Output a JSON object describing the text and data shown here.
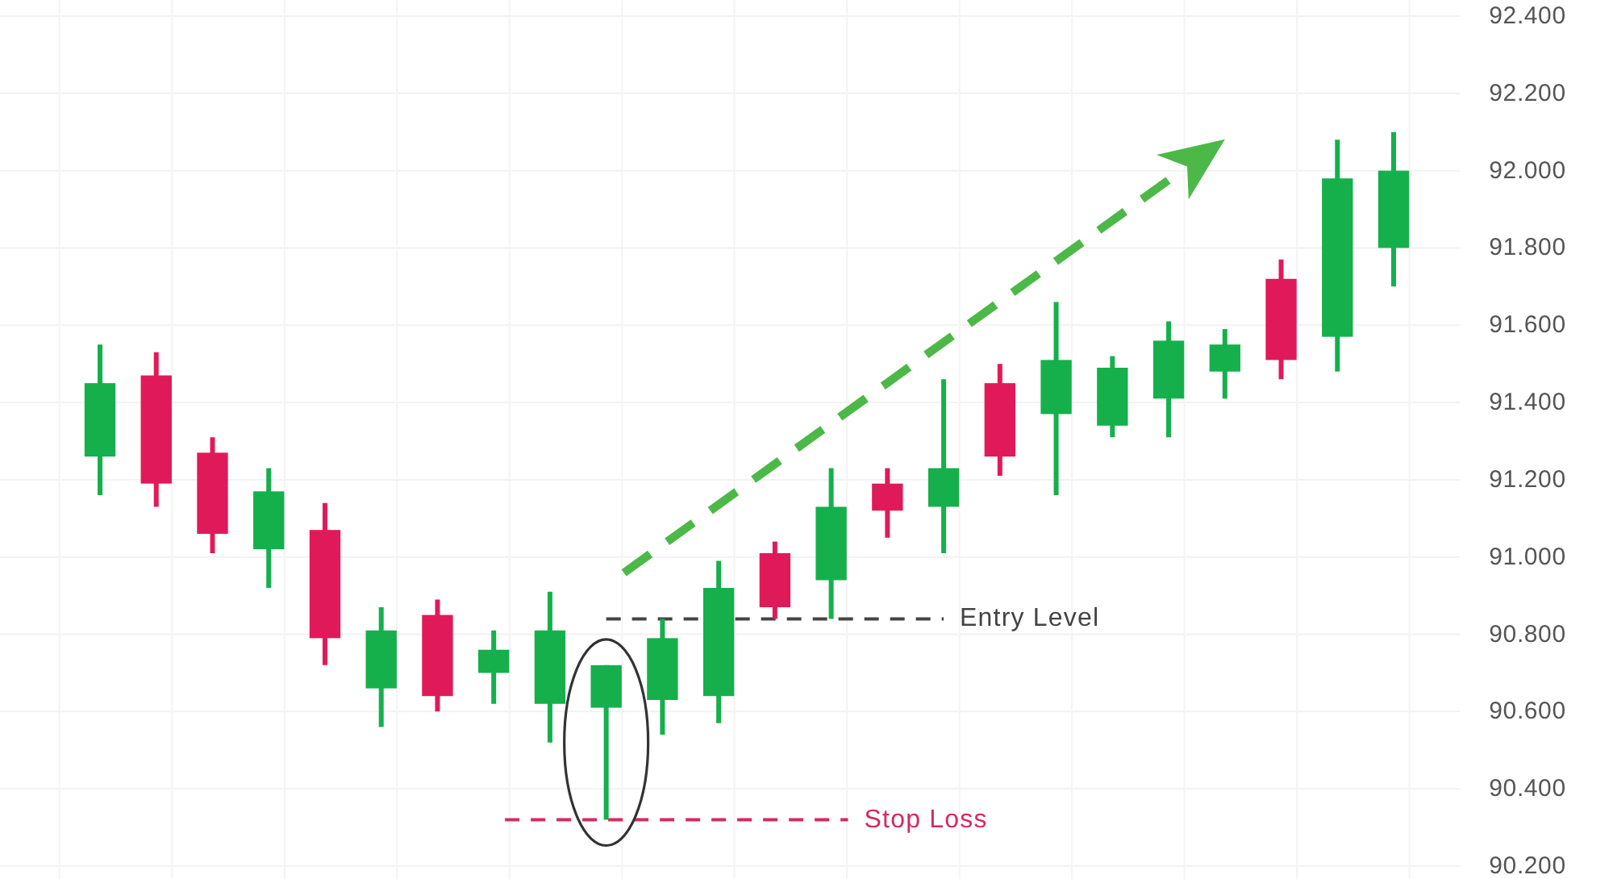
{
  "chart_data": {
    "type": "candlestick",
    "categories": [
      null,
      null,
      null,
      null,
      null,
      null,
      null,
      null,
      null,
      null,
      null,
      null,
      null,
      null,
      null,
      null,
      null,
      null,
      null,
      null,
      null,
      null,
      null,
      null
    ],
    "ohlc": [
      [
        91.26,
        91.55,
        91.16,
        91.45
      ],
      [
        91.47,
        91.53,
        91.13,
        91.19
      ],
      [
        91.27,
        91.31,
        91.01,
        91.06
      ],
      [
        91.02,
        91.23,
        90.92,
        91.17
      ],
      [
        91.07,
        91.14,
        90.72,
        90.79
      ],
      [
        90.66,
        90.87,
        90.56,
        90.81
      ],
      [
        90.85,
        90.89,
        90.6,
        90.64
      ],
      [
        90.7,
        90.81,
        90.62,
        90.76
      ],
      [
        90.62,
        90.91,
        90.52,
        90.81
      ],
      [
        90.61,
        90.72,
        90.32,
        90.72
      ],
      [
        90.63,
        90.84,
        90.54,
        90.79
      ],
      [
        90.64,
        90.99,
        90.57,
        90.92
      ],
      [
        91.01,
        91.04,
        90.84,
        90.87
      ],
      [
        90.94,
        91.23,
        90.84,
        91.13
      ],
      [
        91.19,
        91.23,
        91.05,
        91.12
      ],
      [
        91.13,
        91.46,
        91.01,
        91.23
      ],
      [
        91.45,
        91.5,
        91.21,
        91.26
      ],
      [
        91.37,
        91.66,
        91.16,
        91.51
      ],
      [
        91.34,
        91.52,
        91.31,
        91.49
      ],
      [
        91.41,
        91.61,
        91.31,
        91.56
      ],
      [
        91.48,
        91.59,
        91.41,
        91.55
      ],
      [
        91.72,
        91.77,
        91.46,
        91.51
      ],
      [
        91.57,
        92.08,
        91.48,
        91.98
      ],
      [
        91.8,
        92.1,
        91.7,
        92.0
      ]
    ],
    "colors": [
      "#15b04c",
      "#e01a5a",
      "#e01a5a",
      "#15b04c",
      "#e01a5a",
      "#15b04c",
      "#e01a5a",
      "#15b04c",
      "#15b04c",
      "#15b04c",
      "#15b04c",
      "#15b04c",
      "#e01a5a",
      "#15b04c",
      "#e01a5a",
      "#15b04c",
      "#e01a5a",
      "#15b04c",
      "#15b04c",
      "#15b04c",
      "#15b04c",
      "#e01a5a",
      "#15b04c",
      "#15b04c"
    ],
    "ylim": [
      90.2,
      92.4
    ],
    "yticks": [
      {
        "value": 90.2,
        "label": "90.200"
      },
      {
        "value": 90.4,
        "label": "90.400"
      },
      {
        "value": 90.6,
        "label": "90.600"
      },
      {
        "value": 90.8,
        "label": "90.800"
      },
      {
        "value": 91.0,
        "label": "91.000"
      },
      {
        "value": 91.2,
        "label": "91.200"
      },
      {
        "value": 91.4,
        "label": "91.400"
      },
      {
        "value": 91.6,
        "label": "91.600"
      },
      {
        "value": 91.8,
        "label": "91.800"
      },
      {
        "value": 92.0,
        "label": "92.000"
      },
      {
        "value": 92.2,
        "label": "92.200"
      },
      {
        "value": 92.4,
        "label": "92.400"
      }
    ],
    "grid": true,
    "tick_labels": "y",
    "ref_lines": [
      {
        "axis": "y",
        "value": 90.84,
        "label": "Entry Level",
        "color": "#444444",
        "line_style": "dashed"
      },
      {
        "axis": "y",
        "value": 90.32,
        "label": "Stop Loss",
        "color": "#d42a62",
        "line_style": "dashed"
      }
    ]
  }
}
